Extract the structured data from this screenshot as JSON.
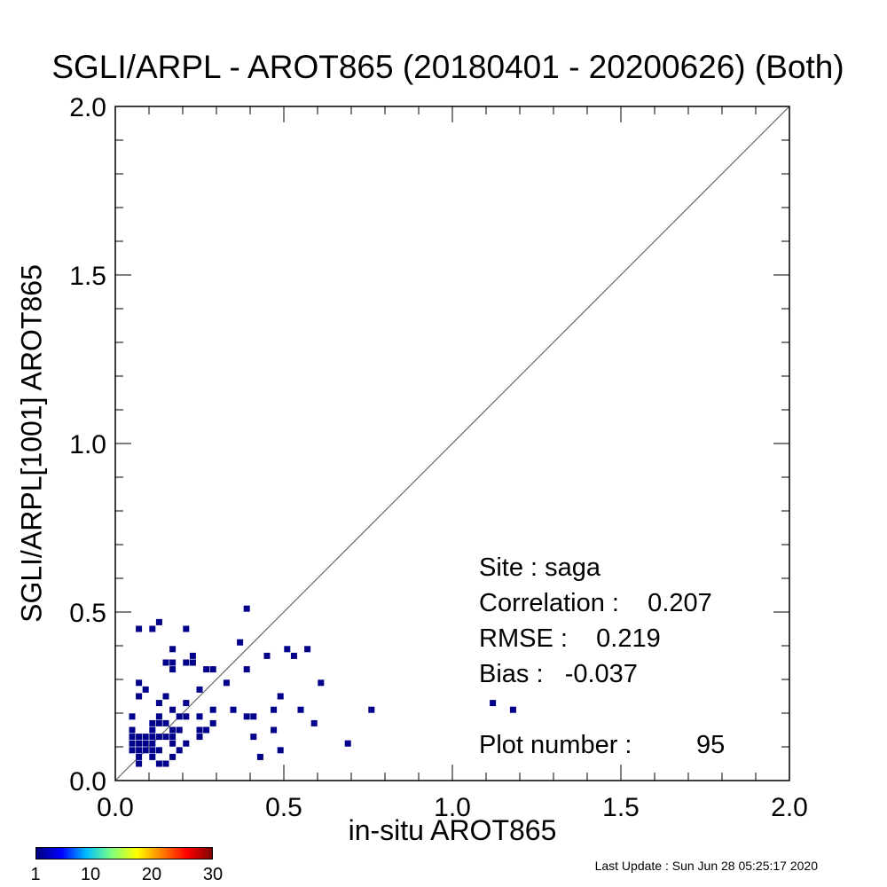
{
  "chart_data": {
    "type": "scatter",
    "title": "SGLI/ARPL - AROT865 (20180401 - 20200626) (Both)",
    "xlabel": "in-situ AROT865",
    "ylabel": "SGLI/ARPL[1001]    AROT865",
    "xlim": [
      0.0,
      2.0
    ],
    "ylim": [
      0.0,
      2.0
    ],
    "xticks": [
      "0.0",
      "0.5",
      "1.0",
      "1.5",
      "2.0"
    ],
    "yticks": [
      "0.0",
      "0.5",
      "1.0",
      "1.5",
      "2.0"
    ],
    "reference_line": "1:1",
    "marker_color": "#00008b",
    "points": [
      [
        0.05,
        0.09
      ],
      [
        0.05,
        0.11
      ],
      [
        0.05,
        0.13
      ],
      [
        0.05,
        0.15
      ],
      [
        0.05,
        0.19
      ],
      [
        0.07,
        0.05
      ],
      [
        0.07,
        0.07
      ],
      [
        0.07,
        0.09
      ],
      [
        0.07,
        0.11
      ],
      [
        0.07,
        0.13
      ],
      [
        0.07,
        0.25
      ],
      [
        0.07,
        0.29
      ],
      [
        0.07,
        0.45
      ],
      [
        0.09,
        0.09
      ],
      [
        0.09,
        0.11
      ],
      [
        0.09,
        0.13
      ],
      [
        0.09,
        0.27
      ],
      [
        0.11,
        0.07
      ],
      [
        0.11,
        0.09
      ],
      [
        0.11,
        0.11
      ],
      [
        0.11,
        0.13
      ],
      [
        0.11,
        0.15
      ],
      [
        0.11,
        0.17
      ],
      [
        0.11,
        0.45
      ],
      [
        0.13,
        0.05
      ],
      [
        0.13,
        0.09
      ],
      [
        0.13,
        0.13
      ],
      [
        0.13,
        0.17
      ],
      [
        0.13,
        0.19
      ],
      [
        0.13,
        0.23
      ],
      [
        0.13,
        0.47
      ],
      [
        0.15,
        0.13
      ],
      [
        0.15,
        0.17
      ],
      [
        0.15,
        0.25
      ],
      [
        0.15,
        0.35
      ],
      [
        0.15,
        0.05
      ],
      [
        0.17,
        0.07
      ],
      [
        0.17,
        0.11
      ],
      [
        0.17,
        0.13
      ],
      [
        0.17,
        0.15
      ],
      [
        0.17,
        0.21
      ],
      [
        0.17,
        0.33
      ],
      [
        0.17,
        0.35
      ],
      [
        0.17,
        0.39
      ],
      [
        0.19,
        0.09
      ],
      [
        0.19,
        0.15
      ],
      [
        0.19,
        0.19
      ],
      [
        0.21,
        0.11
      ],
      [
        0.21,
        0.19
      ],
      [
        0.21,
        0.23
      ],
      [
        0.21,
        0.35
      ],
      [
        0.21,
        0.45
      ],
      [
        0.23,
        0.35
      ],
      [
        0.23,
        0.37
      ],
      [
        0.25,
        0.13
      ],
      [
        0.25,
        0.15
      ],
      [
        0.25,
        0.19
      ],
      [
        0.25,
        0.27
      ],
      [
        0.27,
        0.15
      ],
      [
        0.27,
        0.33
      ],
      [
        0.29,
        0.17
      ],
      [
        0.29,
        0.21
      ],
      [
        0.29,
        0.33
      ],
      [
        0.33,
        0.29
      ],
      [
        0.35,
        0.21
      ],
      [
        0.37,
        0.41
      ],
      [
        0.39,
        0.19
      ],
      [
        0.39,
        0.33
      ],
      [
        0.39,
        0.51
      ],
      [
        0.41,
        0.19
      ],
      [
        0.41,
        0.13
      ],
      [
        0.43,
        0.07
      ],
      [
        0.45,
        0.37
      ],
      [
        0.47,
        0.15
      ],
      [
        0.47,
        0.21
      ],
      [
        0.49,
        0.09
      ],
      [
        0.49,
        0.25
      ],
      [
        0.51,
        0.39
      ],
      [
        0.53,
        0.37
      ],
      [
        0.55,
        0.21
      ],
      [
        0.57,
        0.39
      ],
      [
        0.59,
        0.17
      ],
      [
        0.61,
        0.29
      ],
      [
        0.69,
        0.11
      ],
      [
        0.76,
        0.21
      ],
      [
        1.12,
        0.23
      ],
      [
        1.18,
        0.21
      ]
    ],
    "colorbar": {
      "ticks": [
        "1",
        "10",
        "20",
        "30"
      ],
      "colors": [
        "#00007f",
        "#0000ff",
        "#00bfff",
        "#7fff7f",
        "#ffff00",
        "#ff7f00",
        "#ff0000",
        "#7f0000"
      ]
    }
  },
  "stats": {
    "site": "Site : saga",
    "correlation": "Correlation :    0.207",
    "rmse": "RMSE :    0.219",
    "bias": "Bias :   -0.037",
    "plot_number": "Plot number :         95"
  },
  "last_update": "Last Update : Sun Jun 28 05:25:17 2020"
}
